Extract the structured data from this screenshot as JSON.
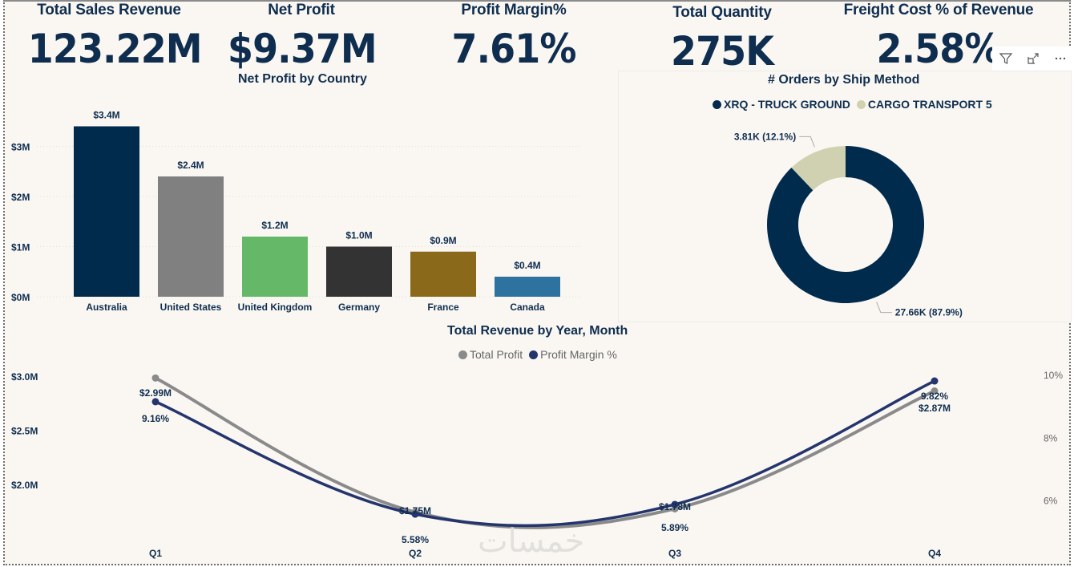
{
  "kpis": [
    {
      "label": "Total Sales Revenue",
      "value": "123.22M"
    },
    {
      "label": "Net Profit",
      "value": "$9.37M"
    },
    {
      "label": "Profit Margin%",
      "value": "7.61%"
    },
    {
      "label": "Total Quantity",
      "value": "275K"
    },
    {
      "label": "Freight Cost % of Revenue",
      "value": "2.58%"
    }
  ],
  "visual_header": {
    "filter_icon": "filter-icon",
    "focus_icon": "focus-mode-icon",
    "more_icon": "more-options-icon"
  },
  "watermark": "خمسات",
  "colors": {
    "navy": "#002b4d",
    "gray": "#808080",
    "green": "#65b868",
    "charcoal": "#333333",
    "olive": "#8a6a1a",
    "steel": "#2e72a0",
    "beige": "#d0d1b0",
    "line_navy": "#24356e",
    "line_gray": "#8a8a8a"
  },
  "chart_data": [
    {
      "type": "bar",
      "title": "Net Profit by Country",
      "categories": [
        "Australia",
        "United States",
        "United Kingdom",
        "Germany",
        "France",
        "Canada"
      ],
      "values": [
        3.4,
        2.4,
        1.2,
        1.0,
        0.9,
        0.4
      ],
      "data_labels": [
        "$3.4M",
        "$2.4M",
        "$1.2M",
        "$1.0M",
        "$0.9M",
        "$0.4M"
      ],
      "bar_colors": [
        "#002b4d",
        "#808080",
        "#65b868",
        "#333333",
        "#8a6a1a",
        "#2e72a0"
      ],
      "yticks": [
        0,
        1,
        2,
        3
      ],
      "ytick_labels": [
        "$0M",
        "$1M",
        "$2M",
        "$3M"
      ],
      "ylim": [
        0,
        3.6
      ],
      "xlabel": "",
      "ylabel": "",
      "grid": true
    },
    {
      "type": "pie",
      "title": "# Orders by Ship Method",
      "legend": [
        "XRQ - TRUCK GROUND",
        "CARGO TRANSPORT 5"
      ],
      "legend_position": "top-center",
      "slices": [
        {
          "label": "XRQ - TRUCK GROUND",
          "value": 27.66,
          "percent": 87.9,
          "data_label": "27.66K (87.9%)",
          "color": "#002b4d"
        },
        {
          "label": "CARGO TRANSPORT 5",
          "value": 3.81,
          "percent": 12.1,
          "data_label": "3.81K (12.1%)",
          "color": "#d0d1b0"
        }
      ],
      "donut": true
    },
    {
      "type": "line",
      "title": "Total Revenue by Year, Month",
      "legend": [
        "Total Profit",
        "Profit Margin %"
      ],
      "legend_position": "top-center",
      "x": [
        "Q1",
        "Q2",
        "Q3",
        "Q4"
      ],
      "series": [
        {
          "name": "Total Profit",
          "axis": "left",
          "values": [
            2.99,
            1.75,
            1.78,
            2.87
          ],
          "data_labels": [
            "$2.99M",
            "$1.75M",
            "$1.78M",
            "$2.87M"
          ],
          "color": "#8a8a8a"
        },
        {
          "name": "Profit Margin %",
          "axis": "right",
          "values": [
            9.16,
            5.58,
            5.89,
            9.82
          ],
          "data_labels": [
            "9.16%",
            "5.58%",
            "5.89%",
            "9.82%"
          ],
          "color": "#24356e"
        }
      ],
      "y_left": {
        "ticks": [
          2.0,
          2.5,
          3.0
        ],
        "tick_labels": [
          "$2.0M",
          "$2.5M",
          "$3.0M"
        ],
        "range": [
          1.65,
          3.0
        ]
      },
      "y_right": {
        "ticks": [
          6,
          8,
          10
        ],
        "tick_labels": [
          "6%",
          "8%",
          "10%"
        ],
        "range": [
          5.2,
          10
        ]
      },
      "grid": false
    }
  ]
}
